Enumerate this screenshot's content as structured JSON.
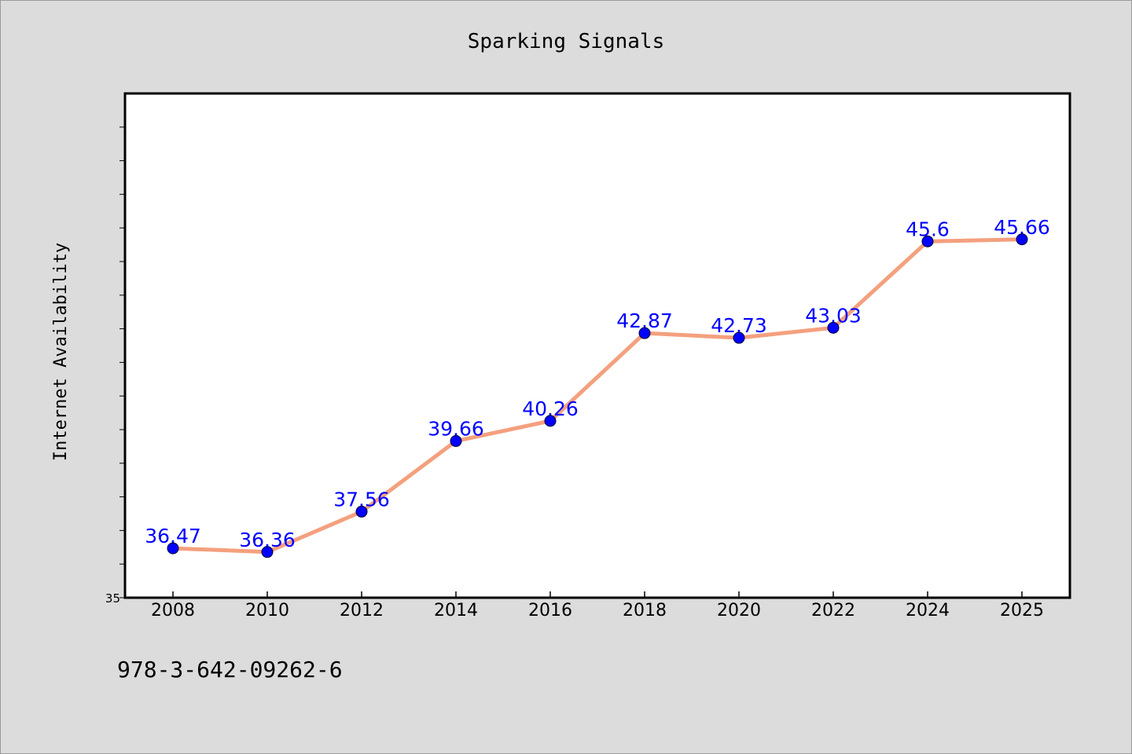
{
  "chart_data": {
    "type": "line",
    "title": "Sparking Signals",
    "ylabel": "Internet Availability",
    "xlabel": "",
    "categories": [
      "2008",
      "2010",
      "2012",
      "2014",
      "2016",
      "2018",
      "2020",
      "2022",
      "2024",
      "2025"
    ],
    "series": [
      {
        "values": [
          36.47,
          36.36,
          37.56,
          39.66,
          40.26,
          42.87,
          42.73,
          43.03,
          45.6,
          45.66
        ],
        "labels": [
          "36.47",
          "36.36",
          "37.56",
          "39.66",
          "40.26",
          "42.87",
          "42.73",
          "43.03",
          "45.6",
          "45.66"
        ],
        "line_color": "#f4a07e",
        "marker_color": "#0000ff"
      }
    ],
    "ylim": [
      35,
      50
    ],
    "ytick_labels": [
      "35"
    ],
    "grid": false,
    "legend": "none"
  },
  "footer": {
    "isbn": "978-3-642-09262-6"
  },
  "colors": {
    "background": "#dcdcdc",
    "plot_background": "#ffffff",
    "label_color": "#0000ff"
  }
}
